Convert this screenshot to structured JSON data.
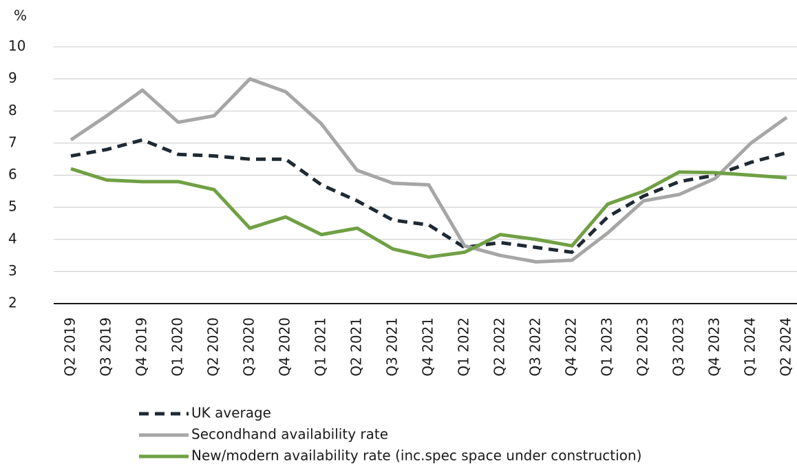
{
  "chart_data": {
    "type": "line",
    "y_label": "%",
    "categories": [
      "Q2 2019",
      "Q3 2019",
      "Q4 2019",
      "Q1 2020",
      "Q2 2020",
      "Q3 2020",
      "Q4 2020",
      "Q1 2021",
      "Q2 2021",
      "Q3 2021",
      "Q4 2021",
      "Q1 2022",
      "Q2 2022",
      "Q3 2022",
      "Q4 2022",
      "Q1 2023",
      "Q2 2023",
      "Q3 2023",
      "Q4 2023",
      "Q1 2024",
      "Q2 2024"
    ],
    "series": [
      {
        "name": "UK average",
        "color": "#1f2a33",
        "dashed": true,
        "values": [
          6.6,
          6.8,
          7.1,
          6.65,
          6.6,
          6.5,
          6.5,
          5.7,
          5.2,
          4.6,
          4.45,
          3.75,
          3.9,
          3.75,
          3.6,
          4.7,
          5.35,
          5.8,
          6.0,
          6.4,
          6.7
        ]
      },
      {
        "name": "Secondhand availability rate",
        "color": "#a6a6a6",
        "dashed": false,
        "values": [
          7.1,
          7.85,
          8.65,
          7.65,
          7.85,
          9.0,
          8.6,
          7.6,
          6.15,
          5.75,
          5.7,
          3.8,
          3.5,
          3.3,
          3.35,
          4.2,
          5.2,
          5.4,
          5.9,
          7.0,
          7.8
        ]
      },
      {
        "name": "New/modern availability rate (inc.spec space under construction)",
        "color": "#70a044",
        "dashed": false,
        "values": [
          6.2,
          5.85,
          5.8,
          5.8,
          5.55,
          4.35,
          4.7,
          4.15,
          4.35,
          3.7,
          3.45,
          3.6,
          4.15,
          4.0,
          3.8,
          5.1,
          5.5,
          6.1,
          6.08,
          6.0,
          5.92
        ]
      }
    ],
    "ylim": [
      2,
      10
    ],
    "yticks": [
      2,
      3,
      4,
      5,
      6,
      7,
      8,
      9,
      10
    ],
    "grid": true
  }
}
